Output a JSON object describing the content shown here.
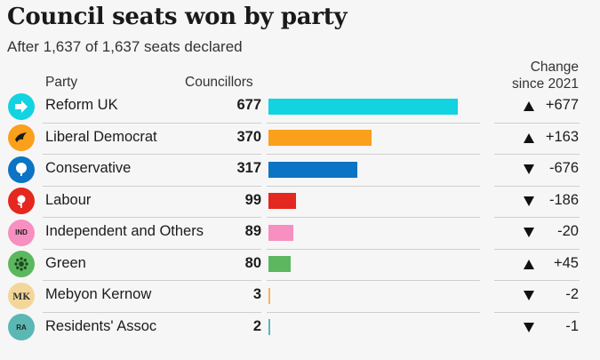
{
  "title": "Council seats won by party",
  "subtitle": "After 1,637 of 1,637 seats declared",
  "headers": {
    "party": "Party",
    "councillors": "Councillors",
    "change_line1": "Change",
    "change_line2": "since 2021"
  },
  "chart_data": {
    "type": "bar",
    "title": "Council seats won by party",
    "subtitle": "After 1,637 of 1,637 seats declared",
    "xlabel": "Councillors",
    "ylabel": "Party",
    "categories": [
      "Reform UK",
      "Liberal Democrat",
      "Conservative",
      "Labour",
      "Independent and Others",
      "Green",
      "Mebyon Kernow",
      "Residents' Assoc"
    ],
    "values": [
      677,
      370,
      317,
      99,
      89,
      80,
      3,
      2
    ],
    "change_since_2021": [
      677,
      163,
      -676,
      -186,
      -20,
      45,
      -2,
      -1
    ],
    "change_labels": [
      "+677",
      "+163",
      "-676",
      "-186",
      "-20",
      "+45",
      "-2",
      "-1"
    ],
    "colors": [
      "#12d3e0",
      "#faa01a",
      "#0b74c4",
      "#e4271f",
      "#f78fc0",
      "#5cb85f",
      "#f5b35a",
      "#5bb7b3"
    ],
    "xlim": [
      0,
      677
    ]
  },
  "parties": [
    {
      "name": "Reform UK",
      "icon": "arrow-right-icon",
      "icon_text": "",
      "icon_color": "#12d3e0"
    },
    {
      "name": "Liberal Democrat",
      "icon": "bird-icon",
      "icon_text": "",
      "icon_color": "#faa01a"
    },
    {
      "name": "Conservative",
      "icon": "tree-icon",
      "icon_text": "",
      "icon_color": "#0b74c4"
    },
    {
      "name": "Labour",
      "icon": "rose-icon",
      "icon_text": "",
      "icon_color": "#e4271f"
    },
    {
      "name": "Independent and Others",
      "icon": "ind-badge-icon",
      "icon_text": "IND",
      "icon_color": "#f78fc0"
    },
    {
      "name": "Green",
      "icon": "flower-icon",
      "icon_text": "",
      "icon_color": "#5cb85f"
    },
    {
      "name": "Mebyon Kernow",
      "icon": "mk-logo-icon",
      "icon_text": "",
      "icon_color": "#f3d79a"
    },
    {
      "name": "Residents' Assoc",
      "icon": "ra-badge-icon",
      "icon_text": "RA",
      "icon_color": "#5bb7b3"
    }
  ]
}
